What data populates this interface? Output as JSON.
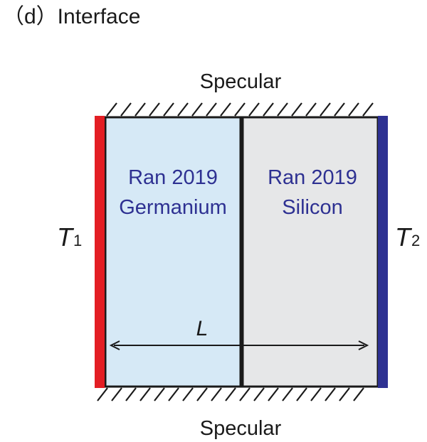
{
  "panel_title": "（d）Interface",
  "boundary_top": "Specular",
  "boundary_bottom": "Specular",
  "left_region": {
    "line1": "Ran 2019",
    "line2": "Germanium",
    "fill": "#d6e9f6"
  },
  "right_region": {
    "line1": "Ran 2019",
    "line2": "Silicon",
    "fill": "#e6e7e8"
  },
  "hot_side": {
    "symbol": "T",
    "subscript": "1",
    "color": "#e31e24"
  },
  "cold_side": {
    "symbol": "T",
    "subscript": "2",
    "color": "#2e3192"
  },
  "length_label": "L",
  "colors": {
    "text_accent": "#2e3192",
    "outline": "#1a1a1a"
  }
}
